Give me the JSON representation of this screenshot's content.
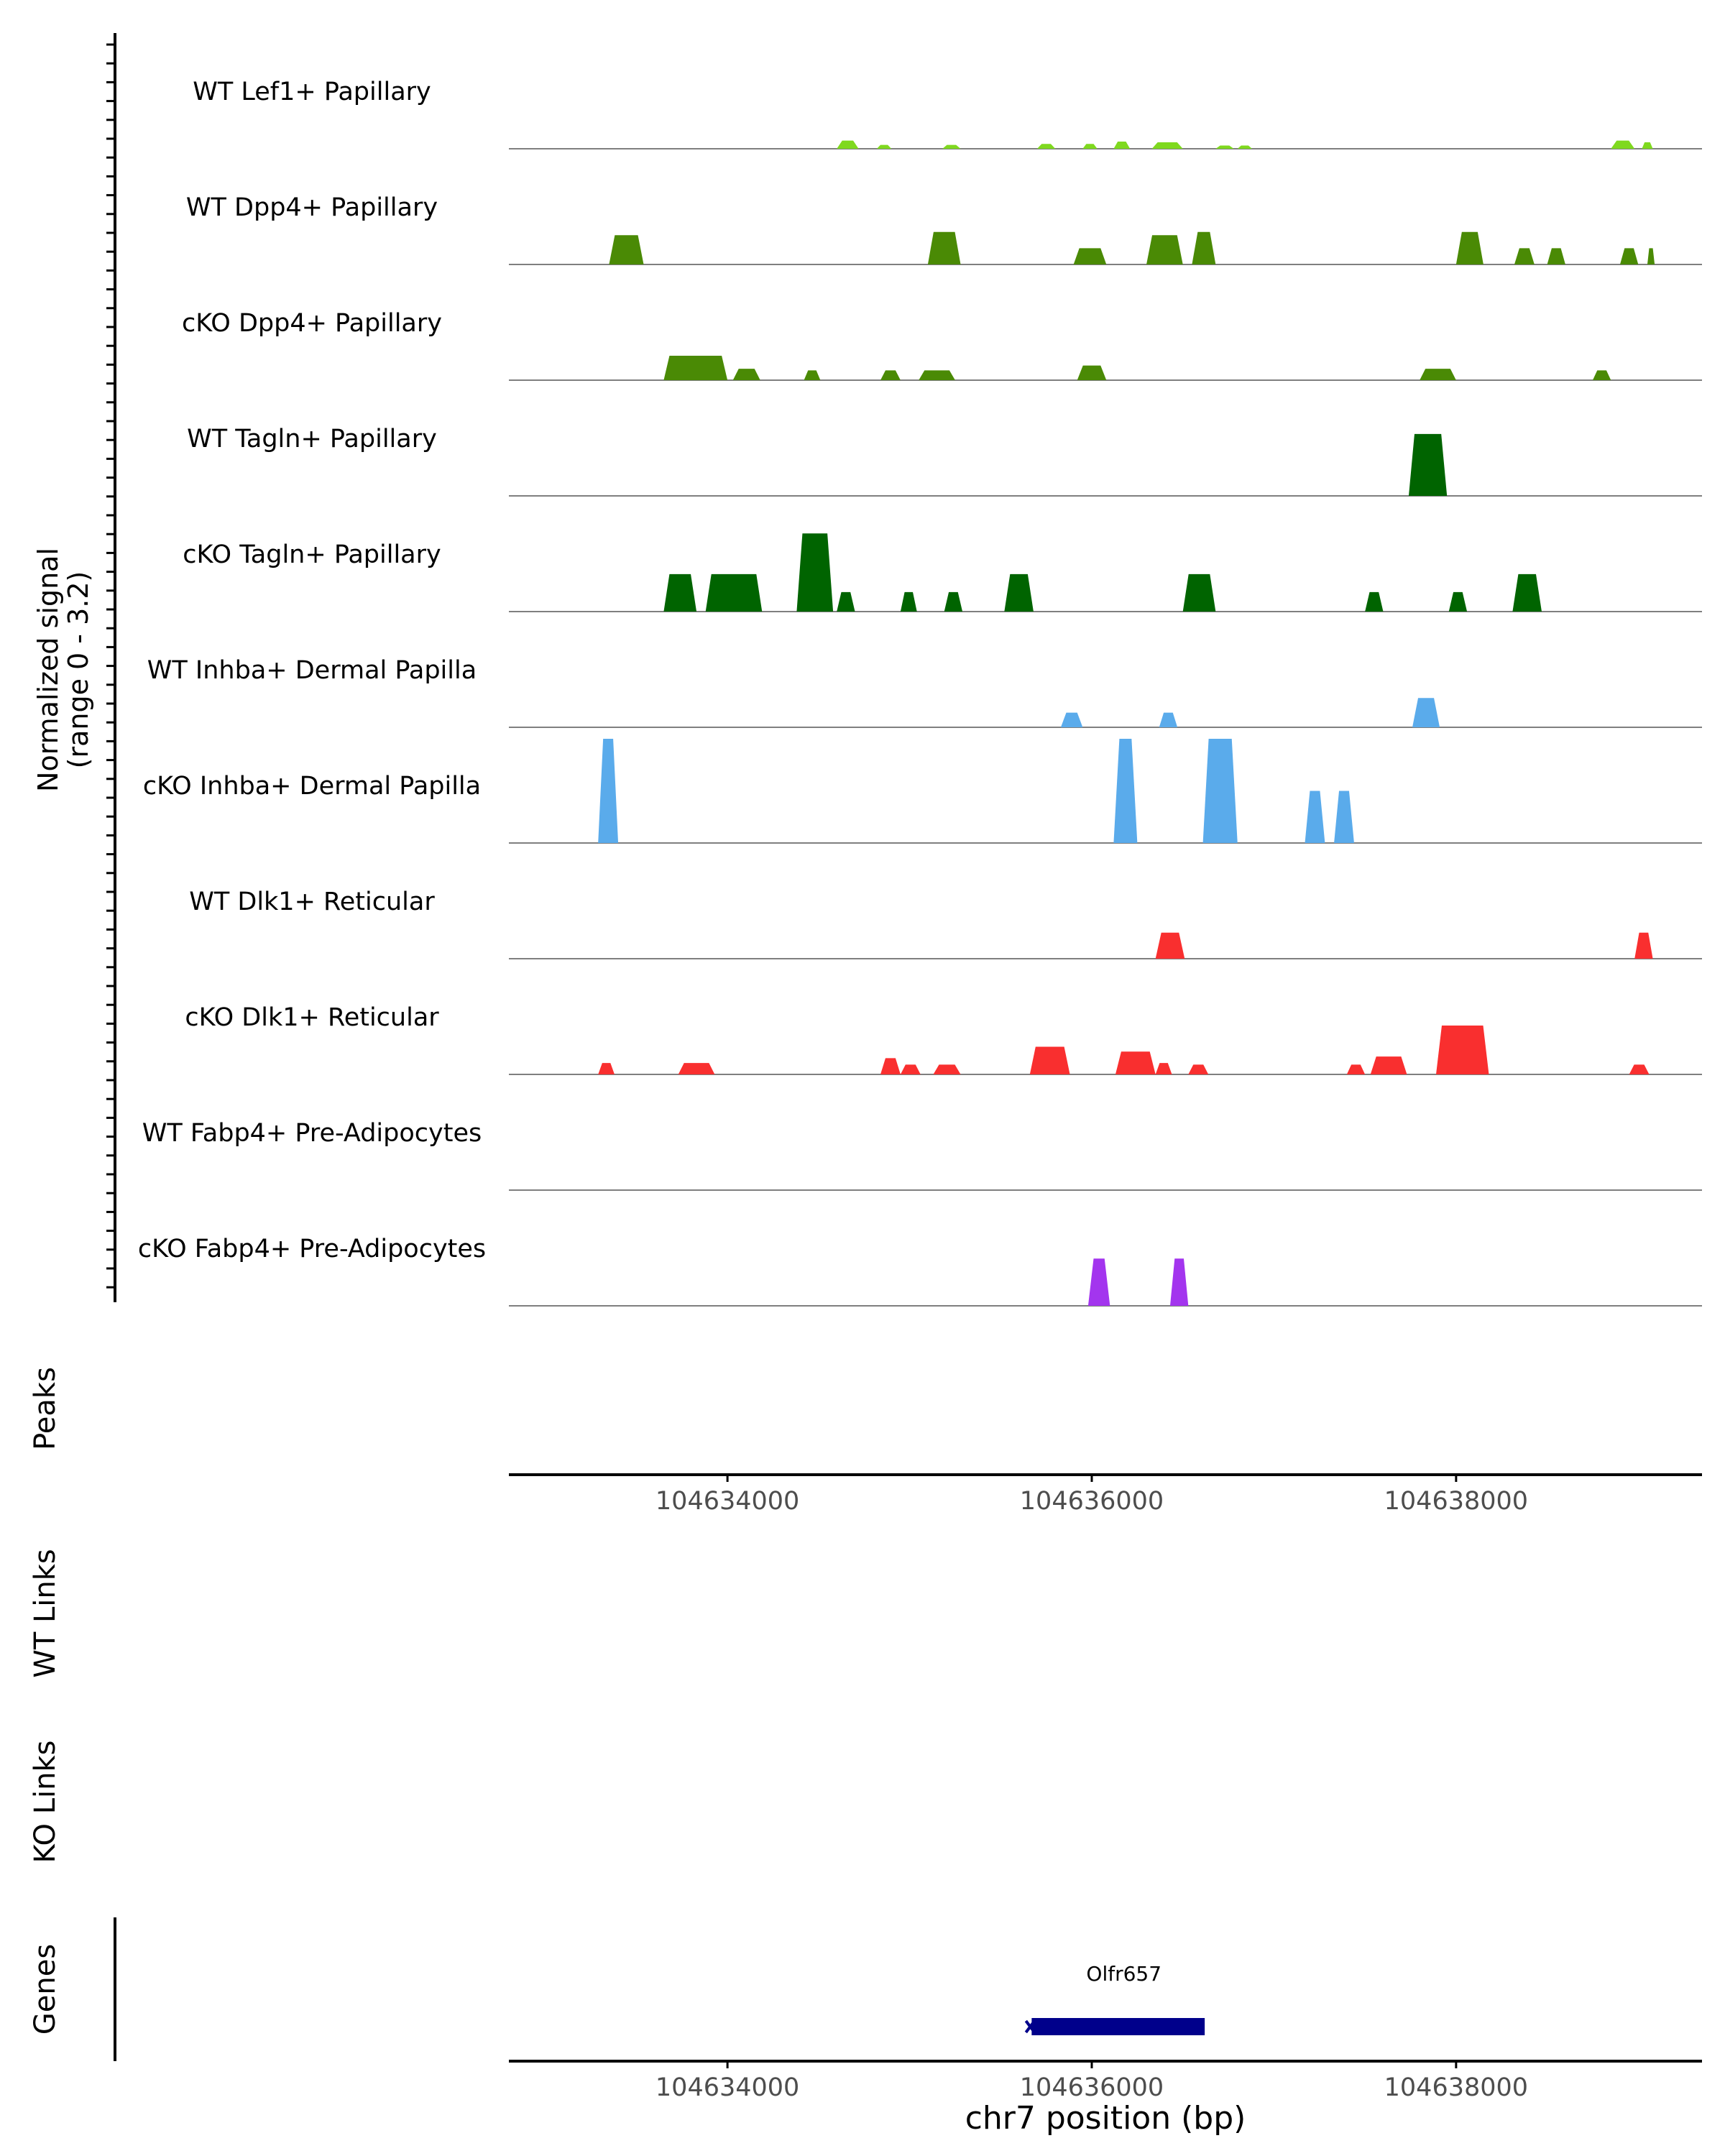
{
  "chart_data": {
    "type": "area",
    "panel": "coverage",
    "ylabel_line1": "Normalized signal",
    "ylabel_line2": "(range 0 - 3.2)",
    "y_range": [
      0,
      3.2
    ],
    "xlim": [
      104632800,
      104639350
    ],
    "x_ticks": [
      {
        "value": 104634000,
        "label": "104634000"
      },
      {
        "value": 104636000,
        "label": "104636000"
      },
      {
        "value": 104638000,
        "label": "104638000"
      }
    ],
    "xlabel": "chr7 position (bp)",
    "peaks_label": "Peaks",
    "wt_links_label": "WT Links",
    "ko_links_label": "KO Links",
    "genes_label": "Genes",
    "gene": {
      "name": "Olfr657",
      "start": 104635670,
      "end": 104636620,
      "color": "#00008b"
    },
    "tracks": [
      {
        "name": "WT Lef1+ Papillary",
        "color": "#7fd91f",
        "peaks": [
          [
            104634600,
            104634720,
            0.25
          ],
          [
            104634820,
            104634900,
            0.12
          ],
          [
            104635180,
            104635280,
            0.12
          ],
          [
            104635700,
            104635800,
            0.15
          ],
          [
            104635950,
            104636030,
            0.15
          ],
          [
            104636120,
            104636210,
            0.22
          ],
          [
            104636330,
            104636500,
            0.2
          ],
          [
            104636680,
            104636780,
            0.1
          ],
          [
            104636800,
            104636880,
            0.1
          ],
          [
            104638850,
            104638980,
            0.25
          ],
          [
            104639020,
            104639080,
            0.2
          ]
        ]
      },
      {
        "name": "WT Dpp4+ Papillary",
        "color": "#4a8a05",
        "peaks": [
          [
            104633350,
            104633540,
            0.9
          ],
          [
            104635100,
            104635280,
            1.0
          ],
          [
            104635900,
            104636080,
            0.5
          ],
          [
            104636300,
            104636500,
            0.9
          ],
          [
            104636550,
            104636680,
            1.0
          ],
          [
            104638000,
            104638150,
            1.0
          ],
          [
            104638320,
            104638430,
            0.5
          ],
          [
            104638500,
            104638600,
            0.5
          ],
          [
            104638900,
            104639000,
            0.5
          ],
          [
            104639050,
            104639090,
            0.5
          ]
        ]
      },
      {
        "name": "cKO Dpp4+ Papillary",
        "color": "#4a8a05",
        "peaks": [
          [
            104633650,
            104634000,
            0.75
          ],
          [
            104634030,
            104634180,
            0.35
          ],
          [
            104634420,
            104634510,
            0.3
          ],
          [
            104634840,
            104634950,
            0.3
          ],
          [
            104635050,
            104635250,
            0.3
          ],
          [
            104635920,
            104636080,
            0.45
          ],
          [
            104637800,
            104638000,
            0.35
          ],
          [
            104638750,
            104638850,
            0.3
          ]
        ]
      },
      {
        "name": "WT Tagln+ Papillary",
        "color": "#006400",
        "peaks": [
          [
            104637740,
            104637950,
            1.9
          ]
        ]
      },
      {
        "name": "cKO Tagln+ Papillary",
        "color": "#006400",
        "peaks": [
          [
            104633650,
            104633830,
            1.15
          ],
          [
            104633880,
            104634190,
            1.15
          ],
          [
            104634380,
            104634580,
            2.4
          ],
          [
            104634600,
            104634700,
            0.6
          ],
          [
            104634950,
            104635040,
            0.6
          ],
          [
            104635190,
            104635290,
            0.6
          ],
          [
            104635520,
            104635680,
            1.15
          ],
          [
            104636500,
            104636680,
            1.15
          ],
          [
            104637500,
            104637600,
            0.6
          ],
          [
            104637960,
            104638060,
            0.6
          ],
          [
            104638310,
            104638470,
            1.15
          ]
        ]
      },
      {
        "name": "WT Inhba+ Dermal Papilla",
        "color": "#5aabeb",
        "peaks": [
          [
            104635830,
            104635950,
            0.45
          ],
          [
            104636370,
            104636470,
            0.45
          ],
          [
            104637760,
            104637910,
            0.9
          ]
        ]
      },
      {
        "name": "cKO Inhba+ Dermal Papilla",
        "color": "#5aabeb",
        "peaks": [
          [
            104633290,
            104633400,
            3.2
          ],
          [
            104636120,
            104636250,
            3.2
          ],
          [
            104636610,
            104636800,
            3.2
          ],
          [
            104637170,
            104637280,
            1.6
          ],
          [
            104637330,
            104637440,
            1.6
          ]
        ]
      },
      {
        "name": "WT Dlk1+ Reticular",
        "color": "#f92f2f",
        "peaks": [
          [
            104636350,
            104636510,
            0.8
          ],
          [
            104638980,
            104639080,
            0.8
          ]
        ]
      },
      {
        "name": "cKO Dlk1+ Reticular",
        "color": "#f92f2f",
        "peaks": [
          [
            104633290,
            104633380,
            0.35
          ],
          [
            104633730,
            104633930,
            0.35
          ],
          [
            104634840,
            104634950,
            0.5
          ],
          [
            104634950,
            104635060,
            0.3
          ],
          [
            104635130,
            104635280,
            0.3
          ],
          [
            104635660,
            104635880,
            0.85
          ],
          [
            104636130,
            104636350,
            0.7
          ],
          [
            104636350,
            104636440,
            0.35
          ],
          [
            104636530,
            104636640,
            0.3
          ],
          [
            104637400,
            104637500,
            0.3
          ],
          [
            104637530,
            104637730,
            0.55
          ],
          [
            104637890,
            104638180,
            1.5
          ],
          [
            104638950,
            104639060,
            0.3
          ]
        ]
      },
      {
        "name": "WT Fabp4+ Pre-Adipocytes",
        "color": "#a335ee",
        "peaks": []
      },
      {
        "name": "cKO Fabp4+ Pre-Adipocytes",
        "color": "#a335ee",
        "peaks": [
          [
            104635980,
            104636100,
            1.45
          ],
          [
            104636430,
            104636530,
            1.45
          ]
        ]
      }
    ]
  }
}
